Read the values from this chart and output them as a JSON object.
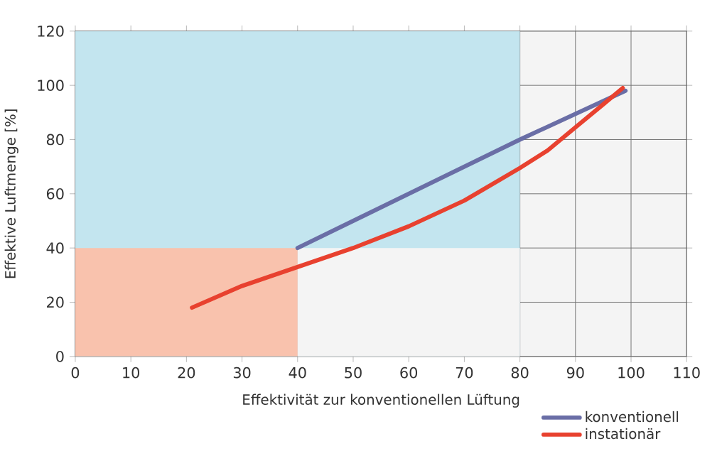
{
  "chart_data": {
    "type": "line",
    "xlabel": "Effektivität zur konventionellen Lüftung",
    "ylabel": "Effektive Luftmenge [%]",
    "xlim": [
      0,
      110
    ],
    "ylim": [
      0,
      120
    ],
    "xticks": [
      0,
      10,
      20,
      30,
      40,
      50,
      60,
      70,
      80,
      90,
      100,
      110
    ],
    "yticks": [
      0,
      20,
      40,
      60,
      80,
      100,
      120
    ],
    "grid": true,
    "legend": "bottom right",
    "series": [
      {
        "type": "area",
        "color": "#c3e5ef",
        "x": [
          0,
          80
        ],
        "values": [
          120,
          120
        ]
      },
      {
        "type": "area",
        "color": "#f4f4f4",
        "x": [
          40,
          80
        ],
        "values": [
          40,
          40
        ]
      },
      {
        "type": "area",
        "color": "#f9c2ad",
        "x": [
          0,
          40
        ],
        "values": [
          40,
          40
        ]
      },
      {
        "name": "konventionell",
        "color": "#6a6ea6",
        "x": [
          40,
          80,
          99
        ],
        "values": [
          40,
          80,
          98
        ]
      },
      {
        "name": "instationär",
        "color": "#e8412f",
        "x": [
          21,
          30,
          40,
          50,
          60,
          70,
          80,
          85,
          90,
          95,
          98.5
        ],
        "values": [
          18,
          26,
          33,
          40,
          48,
          57.5,
          69.5,
          76,
          84.5,
          93,
          99
        ]
      }
    ]
  }
}
